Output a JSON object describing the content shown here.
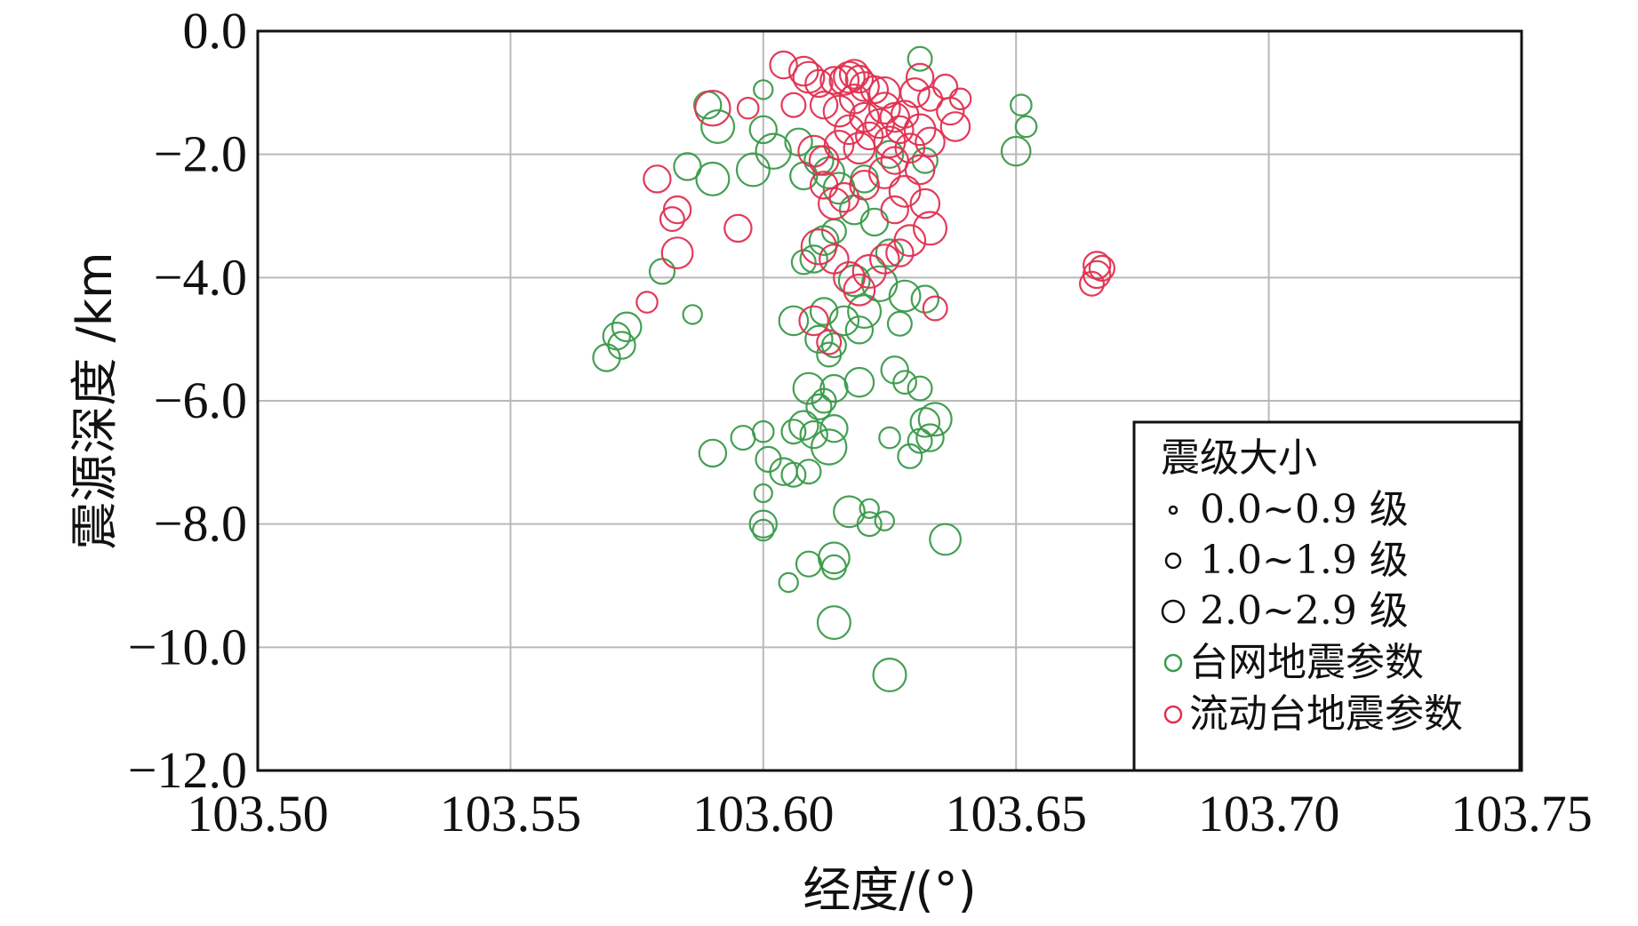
{
  "chart_data": {
    "type": "scatter",
    "xlabel": "经度/(°)",
    "ylabel": "震源深度 /km",
    "xlim": [
      103.5,
      103.75
    ],
    "ylim": [
      -12.0,
      0.0
    ],
    "x_ticks": [
      103.5,
      103.55,
      103.6,
      103.65,
      103.7,
      103.75
    ],
    "x_tick_labels": [
      "103.50",
      "103.55",
      "103.60",
      "103.65",
      "103.70",
      "103.75"
    ],
    "y_ticks": [
      0.0,
      -2.0,
      -4.0,
      -6.0,
      -8.0,
      -10.0,
      -12.0
    ],
    "y_tick_labels": [
      "0.0",
      "−2.0",
      "−4.0",
      "−6.0",
      "−8.0",
      "−10.0",
      "−12.0"
    ],
    "grid": true,
    "legend": {
      "position": "bottom-right",
      "title": "震级大小",
      "size_items": [
        {
          "label": "0.0~0.9 级",
          "mag": 0.5
        },
        {
          "label": "1.0~1.9 级",
          "mag": 1.5
        },
        {
          "label": "2.0~2.9 级",
          "mag": 2.5
        }
      ],
      "series_items": [
        {
          "label": "台网地震参数",
          "color": "#3a9a4a"
        },
        {
          "label": "流动台地震参数",
          "color": "#e03050"
        }
      ]
    },
    "series": [
      {
        "name": "台网地震参数",
        "color": "#3a9a4a",
        "points": [
          [
            103.631,
            -0.45,
            1.5
          ],
          [
            103.6,
            -0.95,
            1.0
          ],
          [
            103.589,
            -1.2,
            1.8
          ],
          [
            103.591,
            -1.55,
            2.4
          ],
          [
            103.6,
            -1.6,
            1.8
          ],
          [
            103.607,
            -1.8,
            1.8
          ],
          [
            103.602,
            -1.95,
            2.6
          ],
          [
            103.598,
            -2.25,
            2.4
          ],
          [
            103.585,
            -2.2,
            1.8
          ],
          [
            103.59,
            -2.4,
            2.4
          ],
          [
            103.608,
            -2.35,
            1.8
          ],
          [
            103.613,
            -2.3,
            2.2
          ],
          [
            103.611,
            -2.1,
            2.0
          ],
          [
            103.615,
            -2.55,
            2.2
          ],
          [
            103.62,
            -2.4,
            1.8
          ],
          [
            103.625,
            -2.0,
            1.8
          ],
          [
            103.632,
            -2.1,
            1.6
          ],
          [
            103.65,
            -1.95,
            2.0
          ],
          [
            103.651,
            -1.2,
            1.2
          ],
          [
            103.652,
            -1.55,
            1.2
          ],
          [
            103.618,
            -2.9,
            2.0
          ],
          [
            103.622,
            -3.1,
            1.8
          ],
          [
            103.614,
            -3.25,
            1.5
          ],
          [
            103.612,
            -3.4,
            2.0
          ],
          [
            103.625,
            -3.6,
            1.8
          ],
          [
            103.608,
            -3.75,
            1.5
          ],
          [
            103.61,
            -3.7,
            1.8
          ],
          [
            103.618,
            -4.05,
            2.2
          ],
          [
            103.623,
            -4.1,
            2.6
          ],
          [
            103.628,
            -4.3,
            2.2
          ],
          [
            103.632,
            -4.35,
            1.8
          ],
          [
            103.62,
            -4.55,
            2.4
          ],
          [
            103.616,
            -4.7,
            2.0
          ],
          [
            103.612,
            -4.55,
            1.8
          ],
          [
            103.606,
            -4.7,
            2.0
          ],
          [
            103.619,
            -4.85,
            1.8
          ],
          [
            103.611,
            -5.0,
            1.8
          ],
          [
            103.613,
            -5.25,
            1.5
          ],
          [
            103.614,
            -5.1,
            1.5
          ],
          [
            103.627,
            -4.75,
            1.5
          ],
          [
            103.58,
            -3.9,
            1.6
          ],
          [
            103.586,
            -4.6,
            1.0
          ],
          [
            103.573,
            -4.8,
            2.0
          ],
          [
            103.571,
            -4.95,
            1.8
          ],
          [
            103.572,
            -5.1,
            1.8
          ],
          [
            103.569,
            -5.3,
            1.8
          ],
          [
            103.609,
            -5.8,
            2.2
          ],
          [
            103.611,
            -6.1,
            1.6
          ],
          [
            103.612,
            -6.0,
            1.5
          ],
          [
            103.614,
            -5.8,
            1.8
          ],
          [
            103.619,
            -5.7,
            2.0
          ],
          [
            103.626,
            -5.5,
            1.8
          ],
          [
            103.628,
            -5.7,
            1.4
          ],
          [
            103.631,
            -5.8,
            1.5
          ],
          [
            103.608,
            -6.4,
            2.0
          ],
          [
            103.606,
            -6.5,
            1.5
          ],
          [
            103.614,
            -6.45,
            1.8
          ],
          [
            103.613,
            -6.75,
            2.6
          ],
          [
            103.61,
            -6.55,
            1.8
          ],
          [
            103.625,
            -6.6,
            1.2
          ],
          [
            103.632,
            -6.35,
            2.0
          ],
          [
            103.634,
            -6.3,
            2.4
          ],
          [
            103.633,
            -6.6,
            1.8
          ],
          [
            103.631,
            -6.65,
            1.5
          ],
          [
            103.629,
            -6.9,
            1.5
          ],
          [
            103.596,
            -6.6,
            1.5
          ],
          [
            103.59,
            -6.85,
            1.8
          ],
          [
            103.6,
            -6.5,
            1.2
          ],
          [
            103.601,
            -6.95,
            1.6
          ],
          [
            103.604,
            -7.15,
            1.8
          ],
          [
            103.606,
            -7.2,
            1.5
          ],
          [
            103.609,
            -7.15,
            1.5
          ],
          [
            103.6,
            -7.5,
            0.9
          ],
          [
            103.6,
            -8.0,
            1.8
          ],
          [
            103.6,
            -8.1,
            1.2
          ],
          [
            103.617,
            -7.8,
            2.2
          ],
          [
            103.621,
            -7.75,
            1.0
          ],
          [
            103.621,
            -8.0,
            1.5
          ],
          [
            103.624,
            -7.95,
            1.0
          ],
          [
            103.636,
            -8.25,
            2.2
          ],
          [
            103.609,
            -8.65,
            1.6
          ],
          [
            103.614,
            -8.55,
            2.2
          ],
          [
            103.614,
            -8.7,
            1.5
          ],
          [
            103.605,
            -8.95,
            1.0
          ],
          [
            103.614,
            -9.6,
            2.4
          ],
          [
            103.625,
            -10.45,
            2.4
          ]
        ]
      },
      {
        "name": "流动台地震参数",
        "color": "#e03050",
        "points": [
          [
            103.604,
            -0.55,
            1.8
          ],
          [
            103.608,
            -0.65,
            2.0
          ],
          [
            103.609,
            -0.75,
            2.2
          ],
          [
            103.611,
            -0.85,
            1.8
          ],
          [
            103.614,
            -0.8,
            1.8
          ],
          [
            103.616,
            -0.8,
            2.0
          ],
          [
            103.617,
            -0.75,
            2.2
          ],
          [
            103.618,
            -0.7,
            2.0
          ],
          [
            103.619,
            -0.78,
            1.8
          ],
          [
            103.62,
            -0.9,
            2.0
          ],
          [
            103.622,
            -0.95,
            1.8
          ],
          [
            103.624,
            -1.0,
            2.2
          ],
          [
            103.612,
            -1.2,
            1.8
          ],
          [
            103.606,
            -1.2,
            1.5
          ],
          [
            103.615,
            -1.3,
            2.2
          ],
          [
            103.618,
            -1.1,
            2.0
          ],
          [
            103.62,
            -1.4,
            2.0
          ],
          [
            103.624,
            -1.25,
            2.2
          ],
          [
            103.626,
            -1.4,
            2.0
          ],
          [
            103.628,
            -1.35,
            1.8
          ],
          [
            103.63,
            -1.0,
            2.0
          ],
          [
            103.631,
            -0.75,
            1.8
          ],
          [
            103.633,
            -1.1,
            1.5
          ],
          [
            103.636,
            -0.9,
            1.5
          ],
          [
            103.637,
            -1.3,
            1.8
          ],
          [
            103.639,
            -1.1,
            1.2
          ],
          [
            103.638,
            -1.55,
            2.0
          ],
          [
            103.59,
            -1.25,
            2.6
          ],
          [
            103.597,
            -1.25,
            1.2
          ],
          [
            103.579,
            -2.4,
            1.8
          ],
          [
            103.583,
            -2.9,
            1.8
          ],
          [
            103.582,
            -3.05,
            1.5
          ],
          [
            103.583,
            -3.6,
            2.2
          ],
          [
            103.577,
            -4.4,
            1.2
          ],
          [
            103.595,
            -3.2,
            1.8
          ],
          [
            103.61,
            -1.95,
            2.2
          ],
          [
            103.612,
            -2.1,
            2.0
          ],
          [
            103.615,
            -1.85,
            2.0
          ],
          [
            103.617,
            -1.6,
            2.0
          ],
          [
            103.619,
            -1.9,
            2.2
          ],
          [
            103.621,
            -1.7,
            1.8
          ],
          [
            103.623,
            -1.5,
            2.0
          ],
          [
            103.625,
            -1.8,
            2.2
          ],
          [
            103.627,
            -1.6,
            1.8
          ],
          [
            103.629,
            -1.9,
            2.0
          ],
          [
            103.631,
            -1.6,
            2.2
          ],
          [
            103.633,
            -1.8,
            2.0
          ],
          [
            103.612,
            -2.5,
            1.8
          ],
          [
            103.614,
            -2.8,
            2.2
          ],
          [
            103.616,
            -2.7,
            2.0
          ],
          [
            103.62,
            -2.5,
            2.0
          ],
          [
            103.624,
            -2.3,
            2.2
          ],
          [
            103.626,
            -2.1,
            1.8
          ],
          [
            103.628,
            -2.6,
            2.2
          ],
          [
            103.631,
            -2.25,
            2.0
          ],
          [
            103.632,
            -2.8,
            2.0
          ],
          [
            103.626,
            -2.9,
            1.8
          ],
          [
            103.611,
            -3.5,
            2.6
          ],
          [
            103.614,
            -3.7,
            2.0
          ],
          [
            103.621,
            -3.9,
            2.4
          ],
          [
            103.624,
            -3.7,
            2.0
          ],
          [
            103.627,
            -3.6,
            1.8
          ],
          [
            103.629,
            -3.4,
            2.2
          ],
          [
            103.633,
            -3.2,
            2.4
          ],
          [
            103.634,
            -4.5,
            1.5
          ],
          [
            103.619,
            -4.2,
            2.2
          ],
          [
            103.617,
            -4.0,
            2.2
          ],
          [
            103.61,
            -4.7,
            2.0
          ],
          [
            103.613,
            -5.05,
            1.5
          ],
          [
            103.666,
            -3.8,
            1.8
          ],
          [
            103.667,
            -3.85,
            1.6
          ],
          [
            103.666,
            -3.95,
            1.8
          ],
          [
            103.665,
            -4.1,
            1.5
          ]
        ]
      }
    ]
  }
}
